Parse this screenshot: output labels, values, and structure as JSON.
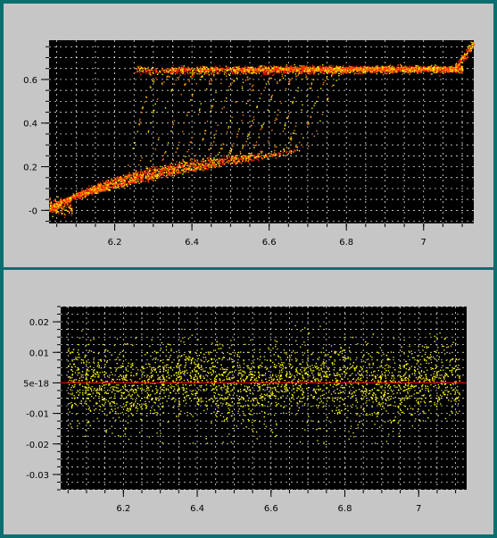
{
  "colors": {
    "window_border": "#0b6f6f",
    "panel_bg": "#c6c6c6",
    "plot_bg": "#000000",
    "grid": "#ffffff",
    "red": "#ff2200",
    "orange": "#ff8800",
    "yellow": "#ffff00",
    "zero_line": "#ff0000"
  },
  "chart_data": [
    {
      "type": "scatter",
      "title": "",
      "xlabel": "",
      "ylabel": "",
      "xlim": [
        6.03,
        7.13
      ],
      "ylim": [
        -0.06,
        0.78
      ],
      "xticks": [
        6.2,
        6.4,
        6.6,
        6.8,
        7
      ],
      "xtick_labels": [
        "6.2",
        "6.4",
        "6.6",
        "6.8",
        "7"
      ],
      "yticks": [
        0,
        0.2,
        0.4,
        0.6
      ],
      "ytick_labels": [
        "-0",
        "0.2",
        "0.4",
        "0.6"
      ],
      "grid": true,
      "series": [
        {
          "description_points": "family of sigmoid curves; step from low level to ~0.65 plateau",
          "upper_plateau": 0.65,
          "step_x_values": [
            6.26,
            6.29,
            6.32,
            6.35,
            6.38,
            6.41,
            6.44,
            6.47,
            6.5,
            6.53,
            6.56,
            6.59,
            6.62,
            6.65,
            6.68,
            6.71,
            6.74
          ],
          "endpoints": {
            "x_start": 6.03,
            "y_start": -0.01,
            "x_end": 7.13,
            "y_end": 0.77
          }
        }
      ]
    },
    {
      "type": "scatter",
      "title": "",
      "xlabel": "",
      "ylabel": "",
      "xlim": [
        6.03,
        7.13
      ],
      "ylim": [
        -0.035,
        0.025
      ],
      "xticks": [
        6.2,
        6.4,
        6.6,
        6.8,
        7
      ],
      "xtick_labels": [
        "6.2",
        "6.4",
        "6.6",
        "6.8",
        "7"
      ],
      "yticks": [
        0.02,
        0.01,
        0,
        -0.01,
        -0.02,
        -0.03
      ],
      "ytick_labels": [
        "0.02",
        "0.01",
        "5e-18",
        "-0.01",
        "-0.02",
        "-0.03"
      ],
      "grid": true,
      "series": [
        {
          "description_points": "residual noise band around zero",
          "center": 0.0,
          "spread": 0.006,
          "outlier_range": [
            -0.02,
            0.015
          ]
        }
      ]
    }
  ]
}
